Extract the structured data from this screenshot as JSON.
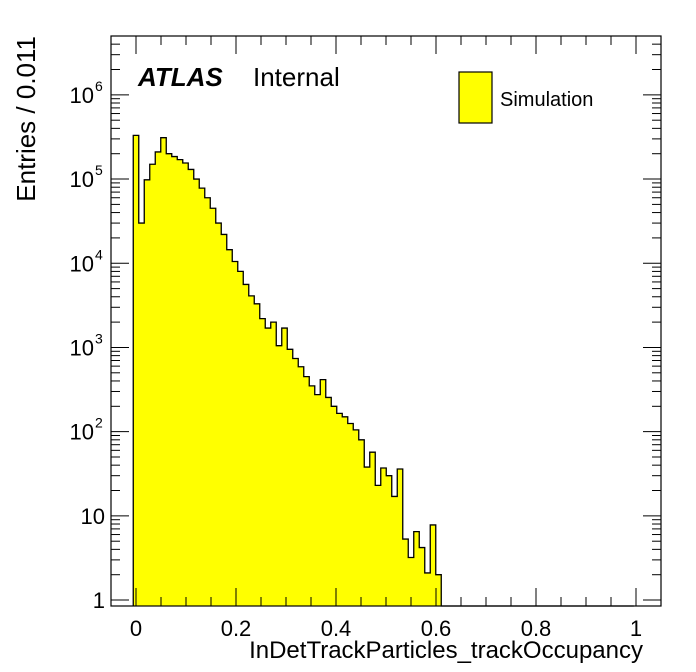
{
  "chart_data": {
    "type": "bar",
    "subtype": "histogram",
    "title": "",
    "xlabel": "InDetTrackParticles_trackOccupancy",
    "ylabel": "Entries / 0.011",
    "y_scale": "log",
    "xlim": [
      -0.05,
      1.05
    ],
    "ylim": [
      0.85,
      5000000
    ],
    "x_ticks": [
      {
        "value": 0,
        "label": "0"
      },
      {
        "value": 0.2,
        "label": "0.2"
      },
      {
        "value": 0.4,
        "label": "0.4"
      },
      {
        "value": 0.6,
        "label": "0.6"
      },
      {
        "value": 0.8,
        "label": "0.8"
      },
      {
        "value": 1,
        "label": "1"
      }
    ],
    "y_ticks": [
      {
        "value": 1,
        "base": "1",
        "exp": ""
      },
      {
        "value": 10,
        "base": "10",
        "exp": ""
      },
      {
        "value": 100,
        "base": "10",
        "exp": "2"
      },
      {
        "value": 1000,
        "base": "10",
        "exp": "3"
      },
      {
        "value": 10000,
        "base": "10",
        "exp": "4"
      },
      {
        "value": 100000,
        "base": "10",
        "exp": "5"
      },
      {
        "value": 1000000,
        "base": "10",
        "exp": "6"
      }
    ],
    "bin_width": 0.011,
    "x_start": -0.0055,
    "values": [
      330000,
      30000,
      98000,
      150000,
      210000,
      310000,
      200000,
      185000,
      170000,
      155000,
      130000,
      100000,
      78000,
      60000,
      45000,
      30000,
      22000,
      14500,
      10500,
      8000,
      5600,
      4100,
      3300,
      2200,
      1700,
      2000,
      1050,
      1700,
      950,
      740,
      590,
      450,
      350,
      275,
      415,
      255,
      200,
      165,
      150,
      125,
      105,
      80,
      38,
      57,
      23,
      37,
      30,
      17,
      36,
      5.3,
      3.2,
      6.5,
      4.2,
      2.1,
      7.8,
      2.0,
      0,
      0,
      0,
      0,
      0,
      0,
      0,
      0,
      0,
      0,
      0,
      0,
      0,
      0,
      0,
      0,
      0,
      0,
      0,
      0,
      0,
      0,
      0,
      0,
      0,
      0,
      0,
      0,
      0,
      0,
      0,
      0,
      0,
      0,
      0
    ],
    "fill_color": "#ffff00",
    "line_color": "#000000",
    "legend": {
      "position": "top-right",
      "entries": [
        {
          "label": "Simulation",
          "color": "#ffff00"
        }
      ]
    },
    "atlas_label": "ATLAS",
    "atlas_suffix": "Internal"
  }
}
